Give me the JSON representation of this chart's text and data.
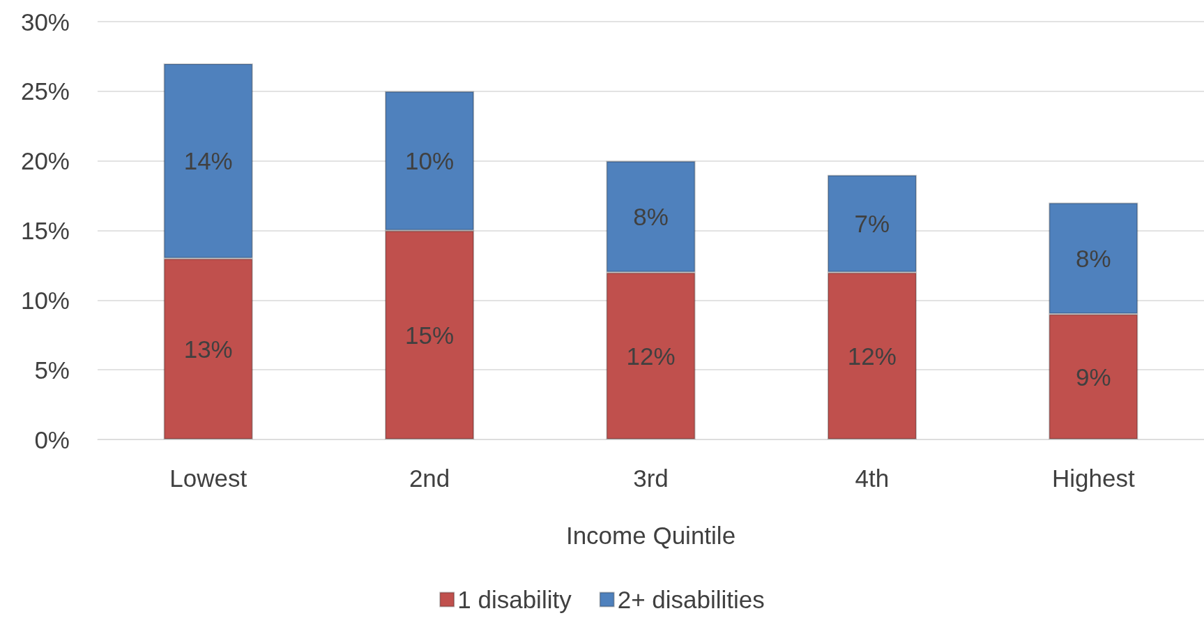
{
  "chart_data": {
    "type": "bar",
    "stacked": true,
    "xlabel": "Income Quintile",
    "categories": [
      "Lowest",
      "2nd",
      "3rd",
      "4th",
      "Highest"
    ],
    "series": [
      {
        "name": "1 disability",
        "color": "#c0504d",
        "values": [
          13,
          15,
          12,
          12,
          9
        ],
        "value_labels": [
          "13%",
          "15%",
          "12%",
          "12%",
          "9%"
        ]
      },
      {
        "name": "2+ disabilities",
        "color": "#4f81bd",
        "values": [
          14,
          10,
          8,
          7,
          8
        ],
        "value_labels": [
          "14%",
          "10%",
          "8%",
          "7%",
          "8%"
        ]
      }
    ],
    "ylim": [
      0,
      30
    ],
    "yticks": [
      {
        "value": 0,
        "label": "0%"
      },
      {
        "value": 5,
        "label": "5%"
      },
      {
        "value": 10,
        "label": "10%"
      },
      {
        "value": 15,
        "label": "15%"
      },
      {
        "value": 20,
        "label": "20%"
      },
      {
        "value": 25,
        "label": "25%"
      },
      {
        "value": 30,
        "label": "30%"
      }
    ],
    "grid": "y",
    "legend": "bottom"
  }
}
